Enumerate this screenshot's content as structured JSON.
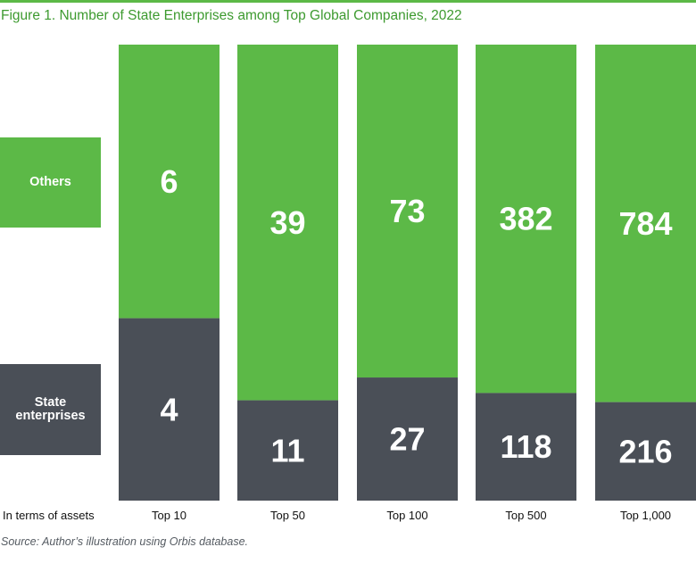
{
  "title": "Figure 1. Number of State Enterprises among Top Global Companies, 2022",
  "source": "Source: Author’s illustration using Orbis database.",
  "colors": {
    "others": "#5cb947",
    "state": "#4a4f57",
    "title": "#3d9a2f"
  },
  "chart_data": {
    "type": "bar",
    "stacked": true,
    "title": "Figure 1. Number of State Enterprises among Top Global Companies, 2022",
    "xlabel": "In terms of assets",
    "ylabel": "",
    "categories": [
      "Top 10",
      "Top 50",
      "Top 100",
      "Top 500",
      "Top 1,000"
    ],
    "series": [
      {
        "name": "State enterprises",
        "values": [
          4,
          11,
          27,
          118,
          216
        ],
        "color": "#4a4f57"
      },
      {
        "name": "Others",
        "values": [
          6,
          39,
          73,
          382,
          784
        ],
        "color": "#5cb947"
      }
    ],
    "normalized": true,
    "legend": "left",
    "grid": false
  }
}
